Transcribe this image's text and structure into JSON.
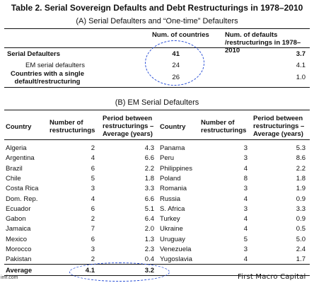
{
  "title": "Table 2. Serial Sovereign Defaults and Debt Restructurings in 1978–2010",
  "panelA": {
    "subtitle": "(A) Serial Defaulters and “One-time” Defaulters",
    "col_headers": [
      "Num. of countries",
      "Num. of defaults /restructurings in 1978–2010"
    ],
    "rows": [
      {
        "label": "Serial Defaulters",
        "countries": "41",
        "defaults": "3.7"
      },
      {
        "label": "EM serial defaulters",
        "countries": "24",
        "defaults": "4.1"
      },
      {
        "label": "Countries with a single default/restructuring",
        "countries": "26",
        "defaults": "1.0"
      }
    ]
  },
  "panelB": {
    "subtitle": "(B) EM Serial Defaulters",
    "headers": {
      "country": "Country",
      "num": "Number of restructurings",
      "period": "Period between restructurings – Average (years)"
    },
    "left": [
      {
        "country": "Algeria",
        "num": "2",
        "period": "4.3"
      },
      {
        "country": "Argentina",
        "num": "4",
        "period": "6.6"
      },
      {
        "country": "Brazil",
        "num": "6",
        "period": "2.2"
      },
      {
        "country": "Chile",
        "num": "5",
        "period": "1.8"
      },
      {
        "country": "Costa Rica",
        "num": "3",
        "period": "3.3"
      },
      {
        "country": "Dom. Rep.",
        "num": "4",
        "period": "6.6"
      },
      {
        "country": "Ecuador",
        "num": "6",
        "period": "5.1"
      },
      {
        "country": "Gabon",
        "num": "2",
        "period": "6.4"
      },
      {
        "country": "Jamaica",
        "num": "7",
        "period": "2.0"
      },
      {
        "country": "Mexico",
        "num": "6",
        "period": "1.3"
      },
      {
        "country": "Morocco",
        "num": "3",
        "period": "2.3"
      },
      {
        "country": "Pakistan",
        "num": "2",
        "period": "0.4"
      }
    ],
    "right": [
      {
        "country": "Panama",
        "num": "3",
        "period": "5.3"
      },
      {
        "country": "Peru",
        "num": "3",
        "period": "8.6"
      },
      {
        "country": "Philippines",
        "num": "4",
        "period": "2.2"
      },
      {
        "country": "Poland",
        "num": "8",
        "period": "1.8"
      },
      {
        "country": "Romania",
        "num": "3",
        "period": "1.9"
      },
      {
        "country": "Russia",
        "num": "4",
        "period": "0.9"
      },
      {
        "country": "S. Africa",
        "num": "3",
        "period": "3.3"
      },
      {
        "country": "Turkey",
        "num": "4",
        "period": "0.9"
      },
      {
        "country": "Ukraine",
        "num": "4",
        "period": "0.5"
      },
      {
        "country": "Uruguay",
        "num": "5",
        "period": "5.0"
      },
      {
        "country": "Venezuela",
        "num": "3",
        "period": "2.4"
      },
      {
        "country": "Yugoslavia",
        "num": "4",
        "period": "1.7"
      }
    ],
    "average": {
      "label": "Average",
      "num": "4.1",
      "period": "3.2"
    }
  },
  "footnote": "imf.com",
  "brand": "First Macro Capital",
  "colors": {
    "annotation": "#2a4fd6"
  }
}
